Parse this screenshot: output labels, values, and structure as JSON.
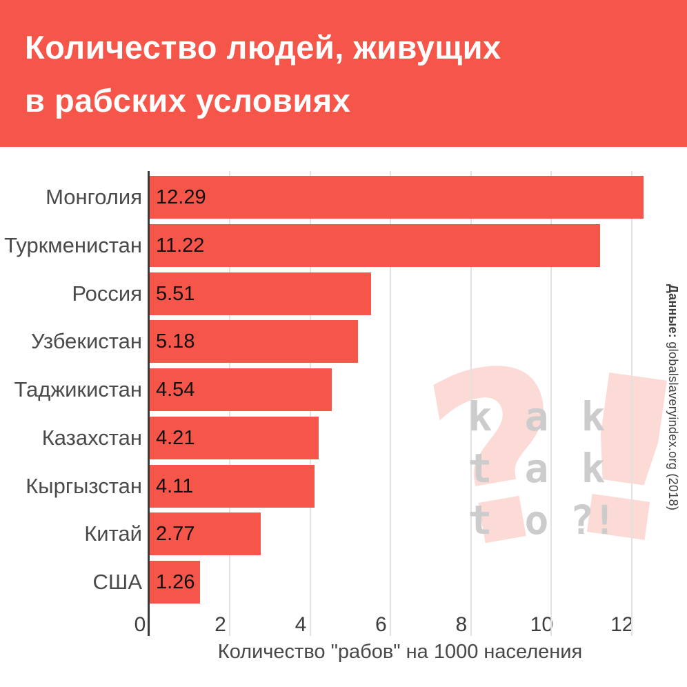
{
  "header": {
    "title_line1": "Количество людей, живущих",
    "title_line2": "в рабских условиях"
  },
  "colors": {
    "accent_red": "#f6564a",
    "bar_red": "#f6564a",
    "watermark_pink": "#fcdad6",
    "watermark_gray": "#cccccc",
    "axis_line": "#3a3a3a",
    "gridline": "#e2e2e2"
  },
  "source": {
    "bold": "Данные:",
    "rest": " globalslaveryindex.org (2018)"
  },
  "chart_data": {
    "type": "bar",
    "orientation": "horizontal",
    "title": "Количество людей, живущих в рабских условиях",
    "categories": [
      "Монголия",
      "Туркменистан",
      "Россия",
      "Узбекистан",
      "Таджикистан",
      "Казахстан",
      "Кыргызстан",
      "Китай",
      "США"
    ],
    "values": [
      12.29,
      11.22,
      5.51,
      5.18,
      4.54,
      4.21,
      4.11,
      2.77,
      1.26
    ],
    "value_labels": [
      "12.29",
      "11.22",
      "5.51",
      "5.18",
      "4.54",
      "4.21",
      "4.11",
      "2.77",
      "1.26"
    ],
    "xlabel": "Количество \"рабов\" на 1000 населения",
    "ylabel": "",
    "xticks": [
      0,
      2,
      4,
      6,
      8,
      10,
      12
    ],
    "xlim": [
      0,
      12.45
    ],
    "grid": true,
    "legend": false,
    "bar_color": "#f6564a"
  },
  "watermark": {
    "question_glyph": "?",
    "exclamation_glyph": "!",
    "letter_rows": [
      [
        "k",
        "a",
        "k"
      ],
      [
        "t",
        "a",
        "k"
      ],
      [
        "t",
        "o",
        "?!"
      ]
    ]
  }
}
